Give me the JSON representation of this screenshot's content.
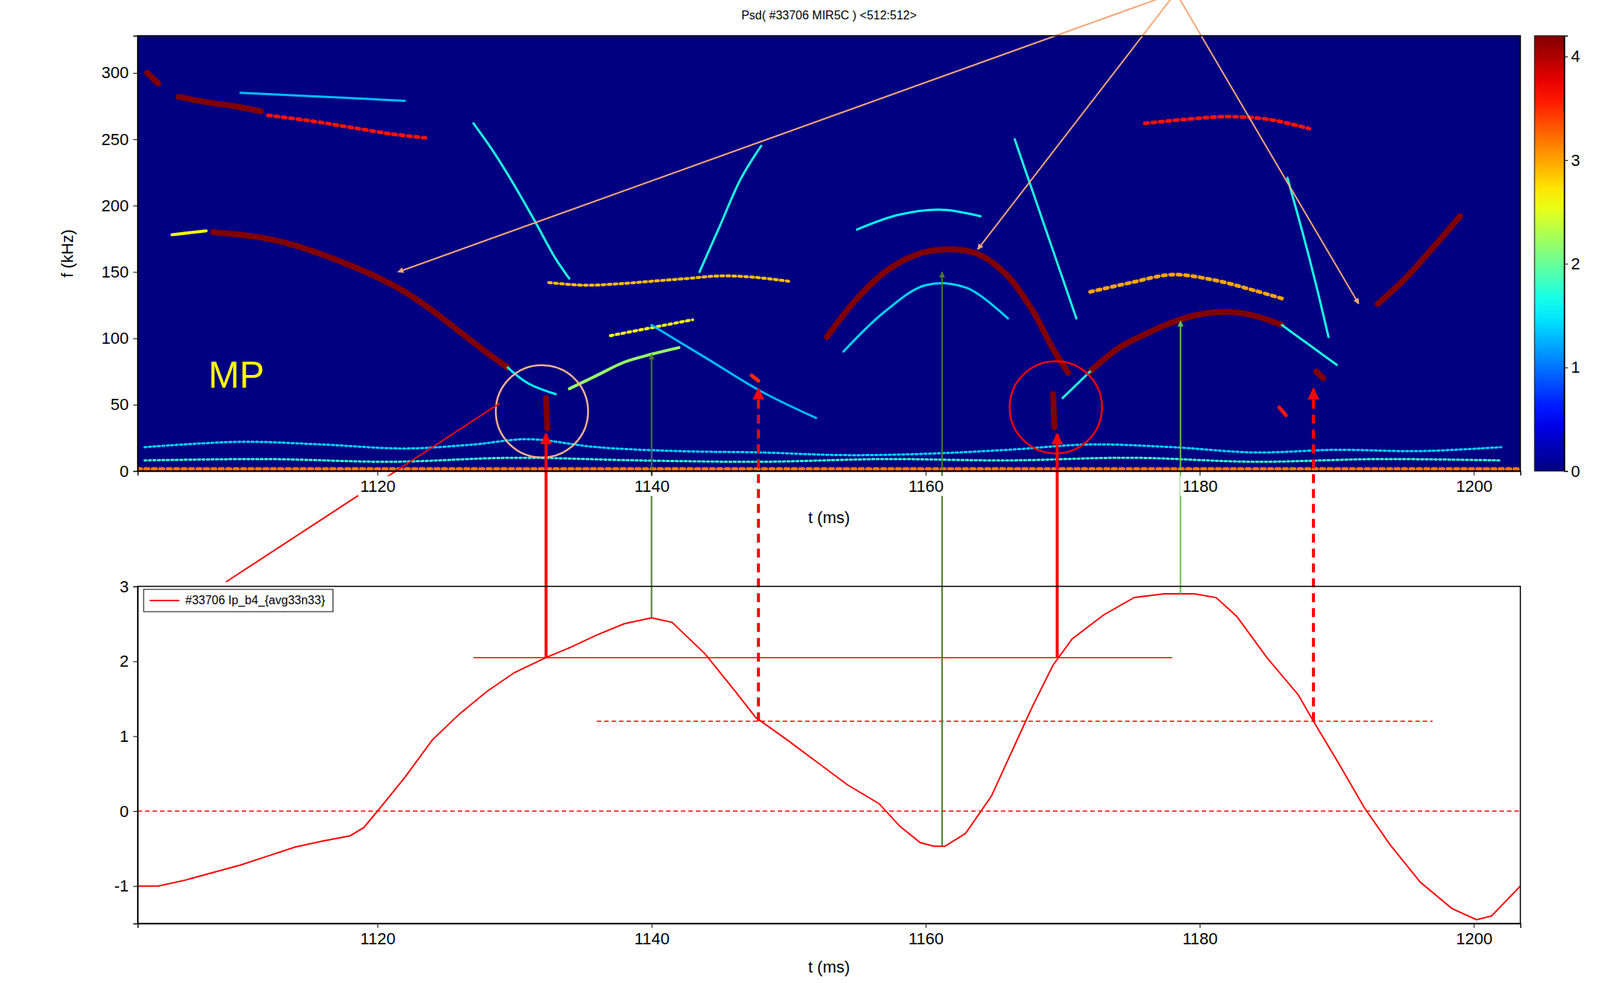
{
  "chart_data": [
    {
      "type": "spectrogram",
      "title": "Psd( #33706 MIR5C )  <512:512>",
      "x_label": "t (ms)",
      "y_label": "f (kHz)",
      "annotations": [
        "MP"
      ],
      "xlim": [
        1102.5,
        1203.4
      ],
      "xticks": [
        1120,
        1140,
        1160,
        1180,
        1200
      ],
      "ylim": [
        0,
        328
      ],
      "yticks": [
        0,
        50,
        100,
        150,
        200,
        250,
        300
      ],
      "colorbar": {
        "range": [
          0,
          4.2
        ],
        "ticks": [
          0,
          1,
          2,
          3,
          4
        ]
      },
      "series": [
        {
          "x": [
            1102.5,
            1203.4
          ],
          "values": [
            1.5,
            1.5
          ],
          "level": 3.2,
          "line_style": "dotted"
        },
        {
          "x": [
            1103,
            1110,
            1116,
            1122,
            1127,
            1131,
            1136,
            1142,
            1148,
            1154,
            1160,
            1166,
            1172,
            1178,
            1184,
            1190,
            1196,
            1202
          ],
          "values": [
            18,
            22,
            20,
            17,
            20,
            24,
            18,
            15,
            14,
            12,
            13,
            16,
            20,
            18,
            14,
            16,
            15,
            18
          ],
          "level": 1.4,
          "line_style": "dotted"
        },
        {
          "x": [
            1103,
            1112,
            1121,
            1130,
            1139,
            1148,
            1157,
            1166,
            1175,
            1184,
            1193,
            1202
          ],
          "values": [
            8,
            9,
            7,
            10,
            8,
            7,
            9,
            8,
            10,
            7,
            9,
            8
          ],
          "level": 1.8,
          "line_style": "dotted"
        },
        {
          "x": [
            1108,
            1110,
            1112,
            1114,
            1116,
            1118,
            1120,
            1122,
            1124,
            1126,
            1128,
            1129.5
          ],
          "values": [
            180,
            178,
            175,
            170,
            163,
            155,
            146,
            135,
            121,
            105,
            89,
            78
          ],
          "level": 4.2,
          "line_style": "solid"
        },
        {
          "x": [
            1105,
            1107.5
          ],
          "values": [
            178,
            181
          ],
          "level": 2.6,
          "line_style": "solid"
        },
        {
          "x": [
            1129.5,
            1131,
            1133
          ],
          "values": [
            78,
            66,
            58
          ],
          "level": 1.6,
          "line_style": "solid"
        },
        {
          "x": [
            1103.2,
            1104
          ],
          "values": [
            300,
            292
          ],
          "level": 4.2,
          "line_style": "solid"
        },
        {
          "x": [
            1105.5,
            1107.5,
            1109.5,
            1111.5
          ],
          "values": [
            282,
            278,
            275,
            271
          ],
          "level": 4.2,
          "line_style": "solid"
        },
        {
          "x": [
            1112,
            1115,
            1118,
            1121,
            1123.5
          ],
          "values": [
            268,
            264,
            259,
            254,
            251
          ],
          "level": 3.6,
          "line_style": "dotted"
        },
        {
          "x": [
            1110,
            1114,
            1118,
            1122
          ],
          "values": [
            285,
            283,
            281,
            279
          ],
          "level": 1.3,
          "line_style": "solid"
        },
        {
          "x": [
            1127,
            1128.5,
            1130,
            1131.5,
            1133,
            1134
          ],
          "values": [
            262,
            240,
            215,
            188,
            160,
            145
          ],
          "level": 1.7,
          "line_style": "solid"
        },
        {
          "x": [
            1132.5,
            1135,
            1137.5,
            1140,
            1142.5,
            1145,
            1147.5,
            1150
          ],
          "values": [
            142,
            140,
            141,
            143,
            145,
            147,
            146,
            143
          ],
          "level": 2.9,
          "line_style": "dotted"
        },
        {
          "x": [
            1143.5,
            1145,
            1146.5,
            1148
          ],
          "values": [
            150,
            185,
            220,
            245
          ],
          "level": 1.7,
          "line_style": "solid"
        },
        {
          "x": [
            1134,
            1136,
            1138,
            1140,
            1142
          ],
          "values": [
            62,
            72,
            82,
            88,
            93
          ],
          "level": 2.2,
          "line_style": "solid"
        },
        {
          "x": [
            1137,
            1139,
            1141,
            1143
          ],
          "values": [
            102,
            106,
            110,
            114
          ],
          "level": 2.6,
          "line_style": "dotted"
        },
        {
          "x": [
            1140,
            1144,
            1148,
            1152
          ],
          "values": [
            110,
            85,
            60,
            40
          ],
          "level": 1.3,
          "line_style": "solid"
        },
        {
          "x": [
            1152.8,
            1155,
            1157.3,
            1159.6,
            1161.4,
            1163.7,
            1165.9,
            1167.8,
            1169.3,
            1170.4
          ],
          "values": [
            101,
            130,
            152,
            164,
            167,
            164,
            148,
            121,
            92,
            74
          ],
          "level": 4.2,
          "line_style": "solid"
        },
        {
          "x": [
            1155,
            1158,
            1161,
            1164
          ],
          "values": [
            182,
            193,
            197,
            192
          ],
          "level": 1.6,
          "line_style": "solid"
        },
        {
          "x": [
            1154,
            1157,
            1160,
            1163,
            1166
          ],
          "values": [
            90,
            120,
            140,
            138,
            115
          ],
          "level": 1.4,
          "line_style": "solid"
        },
        {
          "x": [
            1166.5,
            1168,
            1169.5,
            1171
          ],
          "values": [
            250,
            205,
            160,
            115
          ],
          "level": 1.7,
          "line_style": "solid"
        },
        {
          "x": [
            1132.3,
            1132.4
          ],
          "values": [
            55,
            32
          ],
          "level": 4.2,
          "line_style": "solid"
        },
        {
          "x": [
            1169.3,
            1169.4
          ],
          "values": [
            58,
            33
          ],
          "level": 4.2,
          "line_style": "solid"
        },
        {
          "x": [
            1172,
            1174,
            1176,
            1178,
            1180,
            1182,
            1184,
            1186
          ],
          "values": [
            75,
            92,
            103,
            112,
            118,
            120,
            117,
            110
          ],
          "level": 4.2,
          "line_style": "solid"
        },
        {
          "x": [
            1170,
            1172
          ],
          "values": [
            55,
            75
          ],
          "level": 1.7,
          "line_style": "solid"
        },
        {
          "x": [
            1186,
            1188,
            1190
          ],
          "values": [
            110,
            95,
            80
          ],
          "level": 1.7,
          "line_style": "solid"
        },
        {
          "x": [
            1172,
            1175,
            1178,
            1181,
            1184,
            1186
          ],
          "values": [
            135,
            142,
            148,
            144,
            136,
            130
          ],
          "level": 3.0,
          "line_style": "dotted"
        },
        {
          "x": [
            1176,
            1179,
            1182,
            1185,
            1188
          ],
          "values": [
            262,
            265,
            267,
            265,
            258
          ],
          "level": 3.6,
          "line_style": "dotted"
        },
        {
          "x": [
            1186.4,
            1187.5,
            1188.5,
            1189.4
          ],
          "values": [
            221,
            180,
            140,
            101
          ],
          "level": 1.7,
          "line_style": "solid"
        },
        {
          "x": [
            1193,
            1195,
            1197,
            1199
          ],
          "values": [
            126,
            145,
            168,
            192
          ],
          "level": 4.2,
          "line_style": "solid"
        },
        {
          "x": [
            1147.3,
            1147.8
          ],
          "values": [
            72,
            68
          ],
          "level": 3.5,
          "line_style": "solid"
        },
        {
          "x": [
            1188.5,
            1189
          ],
          "values": [
            75,
            70
          ],
          "level": 4.2,
          "line_style": "solid"
        },
        {
          "x": [
            1185.8,
            1186.3
          ],
          "values": [
            48,
            42
          ],
          "level": 3.6,
          "line_style": "solid"
        }
      ],
      "circles": [
        {
          "t": 1132,
          "f": 45,
          "color": "#f5b48c"
        },
        {
          "t": 1169.5,
          "f": 48,
          "color": "#ff0000"
        }
      ],
      "pointers": [
        {
          "t": 1121.5,
          "f": 150,
          "color": "#f5a878"
        },
        {
          "t": 1163.8,
          "f": 167,
          "color": "#f5a878"
        },
        {
          "t": 1191.6,
          "f": 126,
          "color": "#f5a878"
        }
      ],
      "leaders": [
        {
          "t": 1128.9,
          "f": 51,
          "color": "#ff0000"
        }
      ]
    },
    {
      "type": "line",
      "x_label": "t (ms)",
      "xlim": [
        1102.5,
        1203.4
      ],
      "xticks": [
        1120,
        1140,
        1160,
        1180,
        1200
      ],
      "ylim": [
        -1.5,
        3
      ],
      "yticks": [
        -1,
        0,
        1,
        2,
        3
      ],
      "legend": "top-left",
      "series": [
        {
          "name": "#33706 Ip_b4_{avg33n33}",
          "color": "#ff0000",
          "x": [
            1102.5,
            1104,
            1106,
            1108,
            1110,
            1112,
            1114,
            1116,
            1118,
            1119,
            1120,
            1122,
            1124,
            1126,
            1128,
            1130,
            1132.3,
            1134,
            1136,
            1138,
            1140,
            1141.5,
            1143.9,
            1146.1,
            1147.6,
            1149.9,
            1152.1,
            1154.3,
            1156.6,
            1158.1,
            1159.6,
            1160.6,
            1161.4,
            1162.9,
            1164.8,
            1166.3,
            1167.8,
            1169.3,
            1170.7,
            1173,
            1175.2,
            1177.4,
            1179.6,
            1181.2,
            1182.7,
            1184.9,
            1187.2,
            1188.3,
            1190.1,
            1192,
            1193.9,
            1196.1,
            1198.4,
            1200.2,
            1201.3,
            1203.4
          ],
          "values": [
            -1.0,
            -1.0,
            -0.92,
            -0.82,
            -0.72,
            -0.6,
            -0.48,
            -0.4,
            -0.33,
            -0.22,
            0.0,
            0.45,
            0.95,
            1.3,
            1.6,
            1.85,
            2.05,
            2.18,
            2.35,
            2.5,
            2.58,
            2.52,
            2.1,
            1.6,
            1.25,
            0.95,
            0.65,
            0.35,
            0.1,
            -0.2,
            -0.42,
            -0.47,
            -0.47,
            -0.3,
            0.2,
            0.8,
            1.4,
            1.95,
            2.3,
            2.62,
            2.85,
            2.9,
            2.9,
            2.85,
            2.6,
            2.05,
            1.55,
            1.2,
            0.65,
            0.05,
            -0.45,
            -0.95,
            -1.3,
            -1.45,
            -1.4,
            -1.0
          ]
        }
      ],
      "levels": [
        {
          "y": 2.05,
          "x": [
            1127,
            1178
          ],
          "color": "#ff0000",
          "line_style": "solid"
        },
        {
          "y": 1.2,
          "x": [
            1136,
            1197
          ],
          "color": "#ff0000",
          "line_style": "dashed"
        },
        {
          "y": 0,
          "x": [
            1102.5,
            1203.4
          ],
          "color": "#ff0000",
          "line_style": "dashed"
        }
      ],
      "markers": [
        {
          "t": 1132.3,
          "y": 2.05,
          "f": 28,
          "color": "#ff0000",
          "line_style": "solid"
        },
        {
          "t": 1140,
          "y": 2.58,
          "f": 88,
          "color": "#4b7a2b",
          "line_style": "solid"
        },
        {
          "t": 1147.8,
          "y": 1.2,
          "f": 62,
          "color": "#ff0000",
          "line_style": "dashed"
        },
        {
          "t": 1161.2,
          "y": -0.47,
          "f": 150,
          "color": "#4b7a2b",
          "line_style": "solid"
        },
        {
          "t": 1169.6,
          "y": 2.05,
          "f": 28,
          "color": "#ff0000",
          "line_style": "solid"
        },
        {
          "t": 1178.6,
          "y": 2.9,
          "f": 113,
          "color": "#6abf4b",
          "line_style": "solid"
        },
        {
          "t": 1188.3,
          "y": 1.2,
          "f": 62,
          "color": "#ff0000",
          "line_style": "dashed"
        }
      ]
    }
  ]
}
